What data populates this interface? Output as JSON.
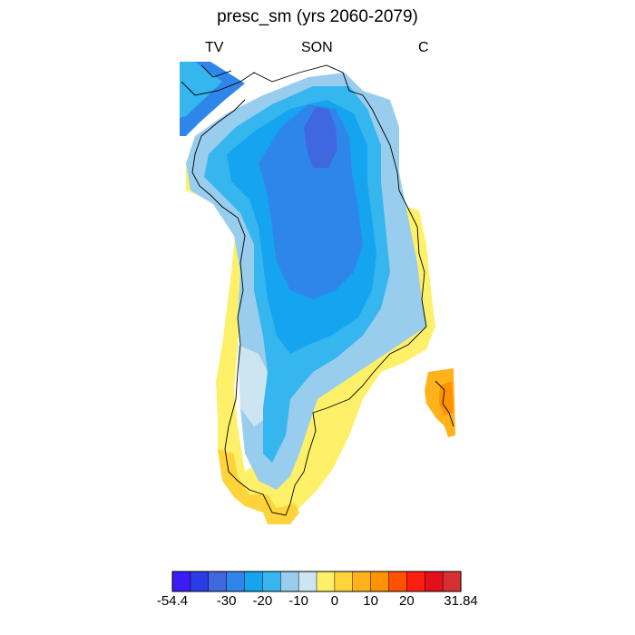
{
  "title": "presc_sm (yrs 2060-2079)",
  "labels": {
    "left": "TV",
    "center": "SON",
    "right": "C"
  },
  "legend": {
    "colors": [
      "#3b1cf5",
      "#2a3ce6",
      "#3f68e0",
      "#2f86ea",
      "#15a4f0",
      "#35b6ef",
      "#98cdee",
      "#cde5f1",
      "#fff06a",
      "#ffd43b",
      "#ffb21a",
      "#ff9200",
      "#ff5100",
      "#ff1e10",
      "#e3101a",
      "#d73034"
    ],
    "tick_labels": [
      "-54.4",
      "-30",
      "-20",
      "-10",
      "0",
      "10",
      "20",
      "31.84"
    ],
    "tick_positions": [
      0,
      3,
      5,
      7,
      9,
      11,
      13,
      16
    ],
    "range": [
      -54.4,
      31.84
    ]
  },
  "map": {
    "region": "Greenland",
    "coastline_color": "#000000"
  }
}
